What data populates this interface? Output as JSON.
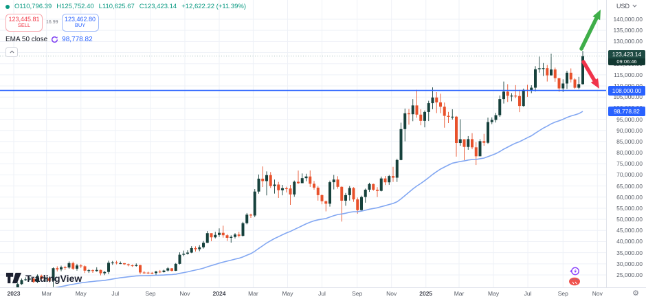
{
  "header": {
    "ohlc": {
      "open": "O110,796.39",
      "high": "H125,752.40",
      "low": "L110,625.67",
      "close": "C123,423.14",
      "change": "+12,622.22 (+11.39%)"
    },
    "sell": {
      "price": "123,445.81",
      "label": "SELL"
    },
    "spread": "16.99",
    "buy": {
      "price": "123,462.80",
      "label": "BUY"
    },
    "indicator": {
      "name": "EMA 50 close",
      "value": "98,778.82"
    }
  },
  "axis": {
    "currency": "USD",
    "labels": {
      "last_price": {
        "text": "123,423.14",
        "countdown": "09:06:46",
        "value": 123423.14
      },
      "level": {
        "text": "108,000.00",
        "value": 108000
      },
      "ema": {
        "text": "98,778.82",
        "value": 98778.82
      }
    }
  },
  "watermark": "TradingView",
  "colors": {
    "up": "#16413c",
    "down": "#e8512b",
    "grid": "#eef1f7",
    "accent_blue": "#2962ff",
    "ema_line": "#82a7f2",
    "last_line": "#7aa39b",
    "green_text": "#089981"
  },
  "chart_data": {
    "type": "candlestick",
    "title": "",
    "ylabel": "USD",
    "ylim": [
      25000,
      140000
    ],
    "grid": true,
    "y_ticks": [
      25000,
      30000,
      35000,
      40000,
      45000,
      50000,
      55000,
      60000,
      65000,
      70000,
      75000,
      80000,
      85000,
      90000,
      95000,
      100000,
      105000,
      110000,
      115000,
      120000,
      125000,
      130000,
      135000,
      140000
    ],
    "x_ticks": [
      {
        "label": "2023",
        "week": 0,
        "year": true
      },
      {
        "label": "Mar",
        "week": 8.3
      },
      {
        "label": "May",
        "week": 17.0
      },
      {
        "label": "Jul",
        "week": 25.7
      },
      {
        "label": "Sep",
        "week": 34.6
      },
      {
        "label": "Nov",
        "week": 43.3
      },
      {
        "label": "2024",
        "week": 52.0,
        "year": true
      },
      {
        "label": "Mar",
        "week": 60.6
      },
      {
        "label": "May",
        "week": 69.3
      },
      {
        "label": "Jul",
        "week": 78.0
      },
      {
        "label": "Sep",
        "week": 86.9
      },
      {
        "label": "Nov",
        "week": 95.6
      },
      {
        "label": "2025",
        "week": 104.3,
        "year": true
      },
      {
        "label": "Mar",
        "week": 112.7
      },
      {
        "label": "May",
        "week": 121.4
      },
      {
        "label": "Jul",
        "week": 130.1
      },
      {
        "label": "Sep",
        "week": 139.0
      },
      {
        "label": "Nov",
        "week": 147.7
      }
    ],
    "ema_period": 50,
    "horizontal_line_price": 108000,
    "last_price": 123423.14,
    "first_open": 16540,
    "closes": [
      16950,
      20880,
      22710,
      23030,
      23330,
      21860,
      24630,
      23180,
      23560,
      22350,
      28030,
      27490,
      28470,
      28330,
      30320,
      27820,
      29250,
      28900,
      26930,
      27120,
      26750,
      27250,
      25750,
      26340,
      30480,
      30620,
      30290,
      30290,
      29790,
      29350,
      29040,
      29430,
      26100,
      26050,
      25970,
      25840,
      26530,
      26250,
      26970,
      27970,
      26870,
      29990,
      34090,
      34530,
      35050,
      37070,
      36570,
      37450,
      39470,
      43790,
      41920,
      43000,
      43950,
      42850,
      41700,
      42120,
      43180,
      42580,
      48290,
      52120,
      51730,
      62500,
      68300,
      67210,
      69890,
      64980,
      65650,
      63110,
      64000,
      63880,
      61200,
      66900,
      66270,
      68530,
      69280,
      66010,
      64260,
      60890,
      58150,
      57040,
      66700,
      67900,
      64630,
      58400,
      60900,
      64100,
      58970,
      54160,
      60060,
      63350,
      65890,
      63330,
      62820,
      68400,
      66660,
      69480,
      68740,
      76680,
      90590,
      97700,
      97280,
      101240,
      97100,
      94300,
      98300,
      102260,
      104800,
      102600,
      100650,
      96560,
      96110,
      96180,
      84350,
      86030,
      82580,
      86090,
      82400,
      78370,
      85170,
      84450,
      93750,
      94710,
      96850,
      104100,
      107450,
      105570,
      105650,
      105470,
      101000,
      108230,
      108060,
      109220,
      117520,
      117950,
      118000,
      114760,
      117400,
      113500,
      108900,
      111100,
      115950,
      112930,
      109200,
      110796.39,
      123423.14
    ],
    "highs": [
      17050,
      21650,
      23370,
      23950,
      24250,
      23570,
      25250,
      25130,
      24130,
      23920,
      28390,
      28890,
      29180,
      29080,
      31050,
      30980,
      29980,
      29850,
      29300,
      27660,
      27480,
      28450,
      27390,
      26790,
      31400,
      31280,
      31380,
      31040,
      30380,
      30090,
      29680,
      30180,
      29550,
      26750,
      26450,
      26350,
      26880,
      27200,
      27350,
      28550,
      28080,
      30350,
      35150,
      35950,
      36080,
      37950,
      37850,
      38380,
      40250,
      44750,
      43450,
      44400,
      45950,
      47150,
      43350,
      42850,
      43800,
      44400,
      48900,
      52850,
      52550,
      63650,
      70180,
      73800,
      71550,
      71280,
      67900,
      66850,
      65480,
      64700,
      65500,
      67450,
      71950,
      70650,
      70520,
      71990,
      67290,
      64980,
      61230,
      58470,
      67440,
      69980,
      69400,
      64830,
      61850,
      65000,
      64500,
      59830,
      60650,
      63850,
      66480,
      66070,
      64480,
      69250,
      69500,
      69980,
      73600,
      77280,
      93480,
      99830,
      99600,
      104090,
      108270,
      99500,
      98980,
      103340,
      109350,
      107240,
      106500,
      102540,
      98350,
      99520,
      96500,
      95000,
      84580,
      87470,
      88770,
      84720,
      86100,
      88470,
      95770,
      95860,
      97900,
      105720,
      111980,
      110780,
      106780,
      110370,
      108250,
      108800,
      110530,
      110310,
      118900,
      123200,
      120300,
      119450,
      124500,
      118250,
      113350,
      113000,
      116850,
      117900,
      113480,
      114100,
      125752.4
    ],
    "lows": [
      16270,
      16920,
      20560,
      22300,
      22520,
      21430,
      21350,
      22720,
      21950,
      21580,
      19550,
      26600,
      26680,
      27250,
      27800,
      27200,
      26940,
      28100,
      25850,
      25890,
      25940,
      26480,
      24800,
      24920,
      25380,
      29550,
      29750,
      29870,
      29520,
      28880,
      28650,
      28750,
      25350,
      25600,
      25450,
      25330,
      24930,
      25830,
      26100,
      26530,
      26560,
      26750,
      29700,
      33420,
      34150,
      34800,
      35550,
      35670,
      36870,
      39350,
      40200,
      41450,
      42100,
      41780,
      40280,
      39540,
      41420,
      41880,
      42270,
      47750,
      50650,
      50950,
      61550,
      64550,
      60770,
      64100,
      61590,
      59640,
      60810,
      62130,
      56550,
      60180,
      65870,
      66350,
      67150,
      64590,
      63380,
      58430,
      56780,
      53600,
      55730,
      63470,
      63800,
      49000,
      56100,
      58450,
      57870,
      52550,
      53950,
      57500,
      62380,
      62860,
      60000,
      62550,
      65470,
      65530,
      66850,
      66820,
      76550,
      85100,
      92600,
      94150,
      95700,
      92330,
      91370,
      94220,
      99550,
      97800,
      97750,
      91230,
      93320,
      94870,
      78230,
      83100,
      76600,
      81290,
      81550,
      74440,
      78430,
      83120,
      83970,
      92810,
      93570,
      96070,
      102100,
      102810,
      103110,
      104500,
      98240,
      100650,
      105100,
      106760,
      107500,
      115980,
      114500,
      112000,
      114680,
      111900,
      107360,
      107270,
      108650,
      111550,
      108690,
      108550,
      110625.67
    ],
    "annotations": [
      {
        "shape": "arrow",
        "direction": "up",
        "color": "#3fae49",
        "from": [
          846,
          71
        ],
        "to": [
          874,
          14
        ]
      },
      {
        "shape": "arrow",
        "direction": "down",
        "color": "#f0334b",
        "from": [
          849,
          90
        ],
        "to": [
          872,
          129
        ]
      }
    ]
  }
}
